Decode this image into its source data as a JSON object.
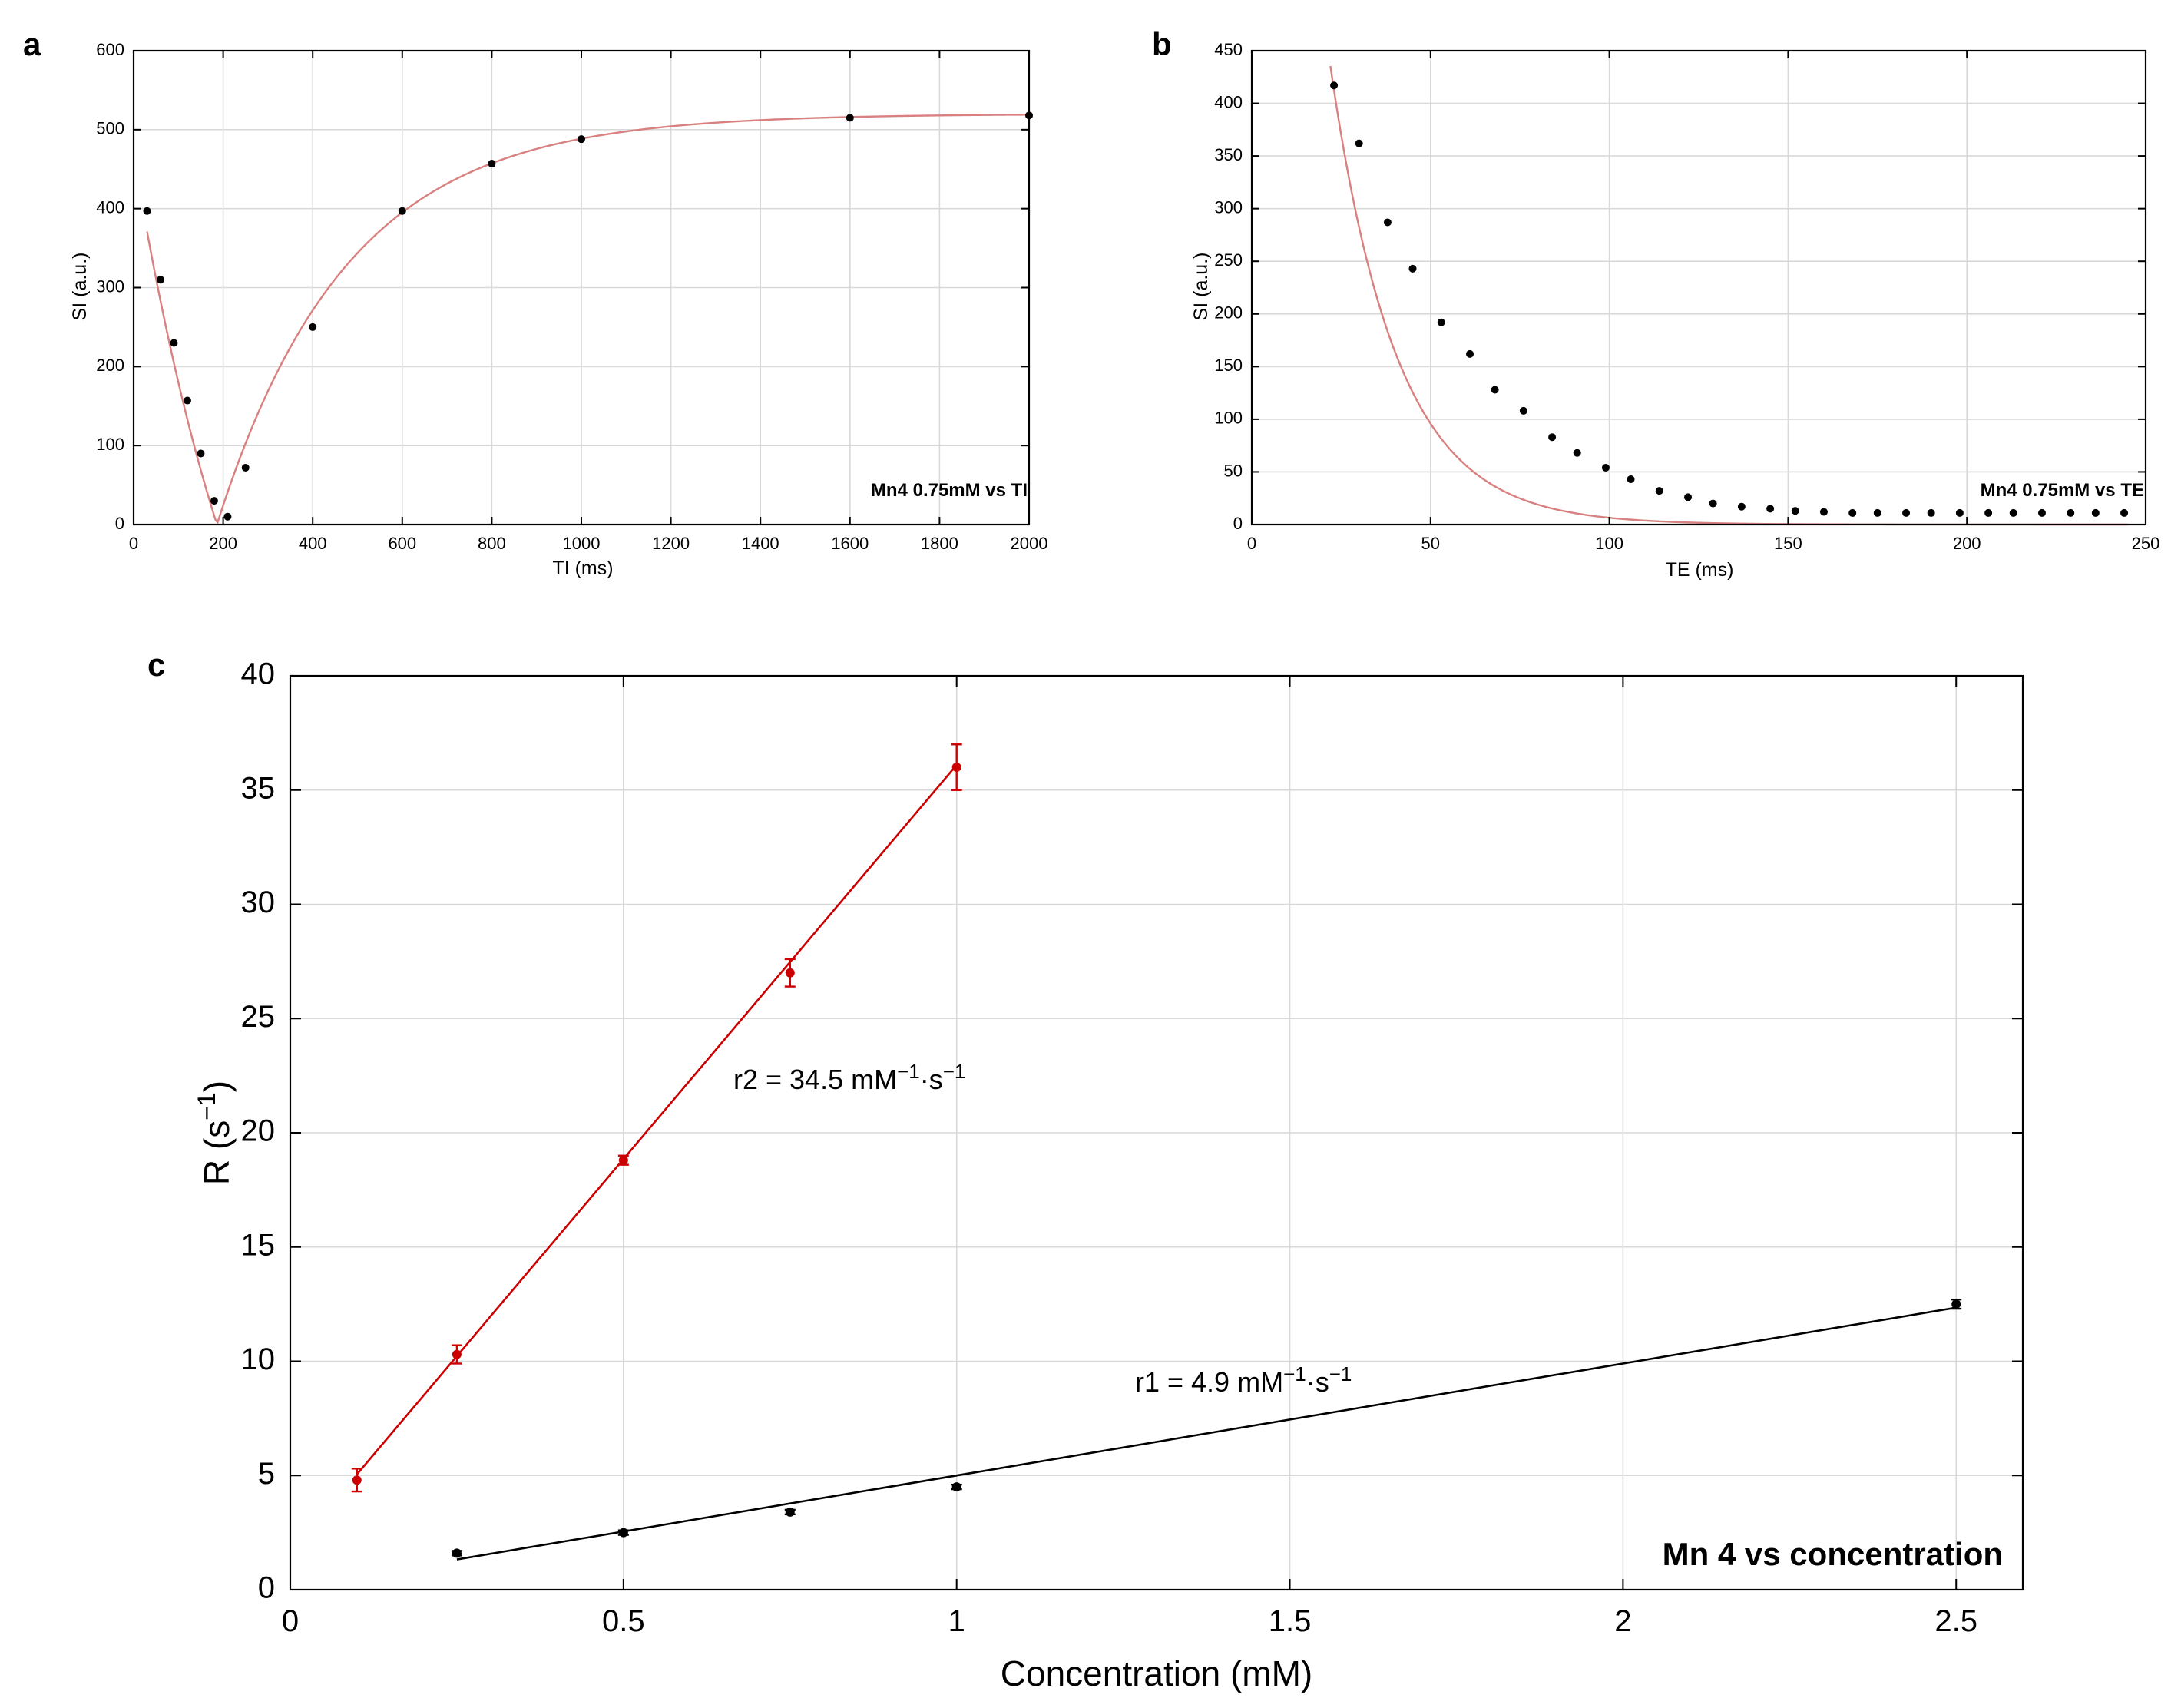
{
  "chart_data": [
    {
      "panel": "a",
      "type": "scatter",
      "annotation": "Mn4 0.75mM vs TI",
      "xlabel": "TI (ms)",
      "ylabel": "SI (a.u.)",
      "xlim": [
        0,
        2000
      ],
      "ylim": [
        0,
        600
      ],
      "xticks": [
        0,
        200,
        400,
        600,
        800,
        1000,
        1200,
        1400,
        1600,
        1800,
        2000
      ],
      "yticks": [
        0,
        100,
        200,
        300,
        400,
        500,
        600
      ],
      "grid": true,
      "point_color": "#000000",
      "fit_color": "#d98080",
      "points": [
        [
          30,
          397
        ],
        [
          60,
          310
        ],
        [
          90,
          230
        ],
        [
          120,
          157
        ],
        [
          150,
          90
        ],
        [
          180,
          30
        ],
        [
          210,
          10
        ],
        [
          250,
          72
        ],
        [
          400,
          250
        ],
        [
          600,
          397
        ],
        [
          800,
          457
        ],
        [
          1000,
          488
        ],
        [
          1600,
          515
        ],
        [
          2000,
          518
        ]
      ],
      "fit": {
        "model": "abs_inversion_recovery",
        "S0": 520,
        "k": 1.9,
        "T1": 290,
        "x_range": [
          30,
          2000
        ]
      }
    },
    {
      "panel": "b",
      "type": "scatter",
      "annotation": "Mn4 0.75mM vs TE",
      "xlabel": "TE (ms)",
      "ylabel": "SI (a.u.)",
      "xlim": [
        0,
        250
      ],
      "ylim": [
        0,
        450
      ],
      "xticks": [
        0,
        50,
        100,
        150,
        200,
        250
      ],
      "yticks": [
        0,
        50,
        100,
        150,
        200,
        250,
        300,
        350,
        400,
        450
      ],
      "grid": true,
      "point_color": "#000000",
      "fit_color": "#d98080",
      "points": [
        [
          23,
          417
        ],
        [
          30,
          362
        ],
        [
          38,
          287
        ],
        [
          45,
          243
        ],
        [
          53,
          192
        ],
        [
          61,
          162
        ],
        [
          68,
          128
        ],
        [
          76,
          108
        ],
        [
          84,
          83
        ],
        [
          91,
          68
        ],
        [
          99,
          54
        ],
        [
          106,
          43
        ],
        [
          114,
          32
        ],
        [
          122,
          26
        ],
        [
          129,
          20
        ],
        [
          137,
          17
        ],
        [
          145,
          15
        ],
        [
          152,
          13
        ],
        [
          160,
          12
        ],
        [
          168,
          11
        ],
        [
          175,
          11
        ],
        [
          183,
          11
        ],
        [
          190,
          11
        ],
        [
          198,
          11
        ],
        [
          206,
          11
        ],
        [
          213,
          11
        ],
        [
          221,
          11
        ],
        [
          229,
          11
        ],
        [
          236,
          11
        ],
        [
          244,
          11
        ]
      ],
      "fit": {
        "model": "exp_decay",
        "A": 1430,
        "T2": 18.5,
        "offset": 0,
        "x_range": [
          22,
          245
        ]
      }
    },
    {
      "panel": "c",
      "type": "scatter",
      "annotation": "Mn 4 vs concentration",
      "xlabel": "Concentration (mM)",
      "ylabel": "R (s",
      "ylabel_sup": "−1",
      "ylabel_end": ")",
      "xlim": [
        0,
        2.6
      ],
      "ylim": [
        0,
        40
      ],
      "xticks": [
        0,
        0.5,
        1,
        1.5,
        2,
        2.5
      ],
      "yticks": [
        0,
        5,
        10,
        15,
        20,
        25,
        30,
        35,
        40
      ],
      "grid": true,
      "series": [
        {
          "name": "R2",
          "color": "#cc0000",
          "x": [
            0.1,
            0.25,
            0.5,
            0.75,
            1.0
          ],
          "y": [
            4.8,
            10.3,
            18.8,
            27.0,
            36.0
          ],
          "err": [
            0.5,
            0.4,
            0.2,
            0.6,
            1.0
          ],
          "fit": {
            "slope": 34.5,
            "intercept": 1.6,
            "x_range": [
              0.1,
              1.0
            ]
          },
          "label": {
            "text": "r2 = 34.5 mM",
            "sup1": "−1",
            "mid": "·s",
            "sup2": "−1"
          }
        },
        {
          "name": "R1",
          "color": "#000000",
          "x": [
            0.25,
            0.5,
            0.75,
            1.0,
            2.5
          ],
          "y": [
            1.6,
            2.5,
            3.4,
            4.5,
            12.5
          ],
          "err": [
            0.1,
            0.1,
            0.1,
            0.1,
            0.2
          ],
          "fit": {
            "slope": 4.9,
            "intercept": 0.1,
            "x_range": [
              0.25,
              2.5
            ]
          },
          "label": {
            "text": "r1 = 4.9 mM",
            "sup1": "−1",
            "mid": "·s",
            "sup2": "−1"
          }
        }
      ]
    }
  ]
}
